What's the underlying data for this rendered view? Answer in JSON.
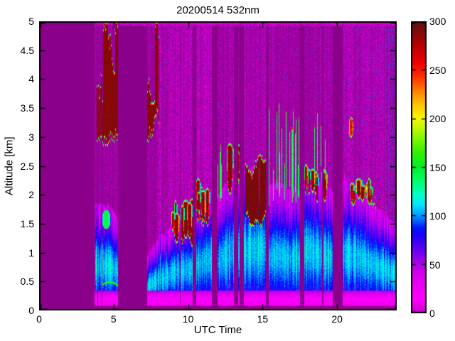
{
  "chart_data": {
    "type": "heatmap",
    "title": "20200514 532nm",
    "xlabel": "UTC Time",
    "ylabel": "Altitude [km]",
    "xlim": [
      0,
      24
    ],
    "ylim": [
      0,
      5
    ],
    "grid": false,
    "xticks": [
      {
        "v": 0,
        "label": "0"
      },
      {
        "v": 5,
        "label": "5"
      },
      {
        "v": 10,
        "label": "10"
      },
      {
        "v": 15,
        "label": "15"
      },
      {
        "v": 20,
        "label": "20"
      }
    ],
    "yticks": [
      {
        "v": 0,
        "label": "0"
      },
      {
        "v": 0.5,
        "label": "0.5"
      },
      {
        "v": 1,
        "label": "1"
      },
      {
        "v": 1.5,
        "label": "1.5"
      },
      {
        "v": 2,
        "label": "2"
      },
      {
        "v": 2.5,
        "label": "2.5"
      },
      {
        "v": 3,
        "label": "3"
      },
      {
        "v": 3.5,
        "label": "3.5"
      },
      {
        "v": 4,
        "label": "4"
      },
      {
        "v": 4.5,
        "label": "4.5"
      },
      {
        "v": 5,
        "label": "5"
      }
    ],
    "colorbar": {
      "min": 0,
      "max": 300,
      "position": "right",
      "ticks": [
        {
          "v": 0,
          "label": "0"
        },
        {
          "v": 50,
          "label": "50"
        },
        {
          "v": 100,
          "label": "100"
        },
        {
          "v": 150,
          "label": "150"
        },
        {
          "v": 200,
          "label": "200"
        },
        {
          "v": 250,
          "label": "250"
        },
        {
          "v": 300,
          "label": "300"
        }
      ],
      "stops": [
        [
          0,
          "#C400C4"
        ],
        [
          14,
          "#FF00FF"
        ],
        [
          40,
          "#D800E8"
        ],
        [
          55,
          "#9900E8"
        ],
        [
          68,
          "#5500F2"
        ],
        [
          80,
          "#1A00FA"
        ],
        [
          88,
          "#0018FF"
        ],
        [
          96,
          "#0070FF"
        ],
        [
          104,
          "#00B4FF"
        ],
        [
          112,
          "#00E8F8"
        ],
        [
          122,
          "#00FFC8"
        ],
        [
          135,
          "#00FF70"
        ],
        [
          150,
          "#00F028"
        ],
        [
          165,
          "#30F000"
        ],
        [
          180,
          "#80F800"
        ],
        [
          200,
          "#F8F800"
        ],
        [
          215,
          "#FFC400"
        ],
        [
          230,
          "#FF7800"
        ],
        [
          245,
          "#FF2800"
        ],
        [
          258,
          "#F00000"
        ],
        [
          275,
          "#B80000"
        ],
        [
          290,
          "#800A0A"
        ],
        [
          300,
          "#5E1010"
        ]
      ]
    },
    "colors": {
      "quiet": "#8B008B",
      "speckle": "#FA00FA",
      "axis": "#000000",
      "background": "#FFFFFF"
    },
    "features": {
      "quiet_end": 3.72,
      "gaps": [
        [
          3.9,
          3.96
        ],
        [
          4.18,
          4.24
        ],
        [
          5.3,
          7.25
        ],
        [
          9.43,
          9.5
        ],
        [
          10.33,
          10.55
        ],
        [
          11.58,
          11.97
        ],
        [
          13.05,
          13.35
        ],
        [
          13.45,
          13.75
        ],
        [
          15.2,
          15.4
        ],
        [
          17.5,
          17.78
        ],
        [
          19.0,
          19.1
        ],
        [
          19.72,
          20.35
        ]
      ],
      "noise_regions": [
        [
          3.72,
          5.3,
          0.5,
          0.03
        ],
        [
          7.25,
          7.97,
          0.45,
          0.03
        ],
        [
          7.97,
          9.43,
          0.8,
          0.05
        ],
        [
          9.5,
          10.33,
          0.85,
          0.05
        ],
        [
          10.55,
          11.58,
          0.9,
          0.05
        ],
        [
          11.97,
          12.75,
          0.6,
          0.05
        ],
        [
          12.75,
          13.05,
          0.7,
          0.05
        ],
        [
          13.35,
          13.45,
          0.5,
          0.05
        ],
        [
          13.75,
          15.2,
          0.75,
          0.06
        ],
        [
          15.4,
          16.5,
          0.55,
          0.05
        ],
        [
          16.5,
          17.5,
          0.5,
          0.05
        ],
        [
          17.78,
          19.0,
          0.55,
          0.06
        ],
        [
          19.1,
          19.72,
          0.65,
          0.06
        ],
        [
          20.35,
          21.3,
          0.8,
          0.08
        ],
        [
          21.3,
          23.3,
          0.85,
          0.1
        ],
        [
          23.3,
          24.0,
          0.62,
          0.28
        ]
      ],
      "aerosol": [
        {
          "t": [
            3.75,
            5.3
          ],
          "top": [
            1.8,
            1.62
          ]
        },
        {
          "t": [
            7.25,
            9.43
          ],
          "top": [
            0.95,
            1.5
          ]
        },
        {
          "t": [
            9.5,
            10.33
          ],
          "top": [
            1.5,
            1.6
          ]
        },
        {
          "t": [
            10.55,
            11.58
          ],
          "top": [
            1.85,
            1.95
          ]
        },
        {
          "t": [
            11.97,
            13.45
          ],
          "top": [
            2.05,
            2.3
          ]
        },
        {
          "t": [
            13.75,
            15.2
          ],
          "top": [
            2.45,
            2.5
          ]
        },
        {
          "t": [
            15.4,
            17.5
          ],
          "top": [
            2.15,
            2.0
          ]
        },
        {
          "t": [
            17.78,
            19.72
          ],
          "top": [
            2.35,
            1.95
          ]
        },
        {
          "t": [
            20.35,
            24.0
          ],
          "top": [
            2.3,
            1.35
          ],
          "fringe": [
            21.0,
            22.6
          ]
        }
      ],
      "extras": [
        {
          "type": "line",
          "t": [
            4.25,
            5.28
          ],
          "z": 0.45,
          "amp": 0.045,
          "value": 150
        },
        {
          "type": "patch",
          "t": [
            4.22,
            4.8
          ],
          "z": [
            1.42,
            1.74
          ],
          "value": 140
        }
      ],
      "clouds": [
        {
          "type": "tower",
          "t": [
            3.88,
            5.28
          ],
          "z": [
            2.85,
            5.0
          ],
          "density": 0.85
        },
        {
          "type": "tower",
          "t": [
            7.28,
            7.97
          ],
          "z": [
            2.9,
            5.0
          ],
          "density": 0.85
        },
        {
          "type": "cumulus",
          "t": [
            8.95,
            10.3
          ],
          "z": [
            1.1,
            1.95
          ],
          "density": 0.6
        },
        {
          "type": "cumulus",
          "t": [
            10.6,
            11.5
          ],
          "z": [
            1.35,
            2.3
          ],
          "density": 0.65
        },
        {
          "type": "streaks",
          "t": [
            12.0,
            12.75
          ],
          "z": [
            1.9,
            3.05
          ],
          "density": 0.35
        },
        {
          "type": "cumulus",
          "t": [
            12.78,
            13.6
          ],
          "z": [
            1.95,
            2.9
          ],
          "density": 0.55
        },
        {
          "type": "mass",
          "t": [
            13.85,
            15.18
          ],
          "z": [
            1.45,
            2.7
          ],
          "density": 0.95
        },
        {
          "type": "streaks",
          "t": [
            15.45,
            17.5
          ],
          "z": [
            1.8,
            3.7
          ],
          "density": 0.4
        },
        {
          "type": "cumulus",
          "t": [
            17.78,
            19.2
          ],
          "z": [
            1.85,
            2.55
          ],
          "density": 0.55
        },
        {
          "type": "streaks",
          "t": [
            18.3,
            19.6
          ],
          "z": [
            2.2,
            3.45
          ],
          "density": 0.22
        },
        {
          "type": "blob",
          "t": [
            20.78,
            21.1
          ],
          "z": [
            3.0,
            3.35
          ]
        },
        {
          "type": "cumulus",
          "t": [
            20.9,
            22.35
          ],
          "z": [
            1.8,
            2.3
          ],
          "density": 0.45
        }
      ],
      "bottom_band": {
        "glow_center_km": 0.17,
        "dark_below_km": 0.09,
        "top_km": 0.34
      }
    }
  }
}
